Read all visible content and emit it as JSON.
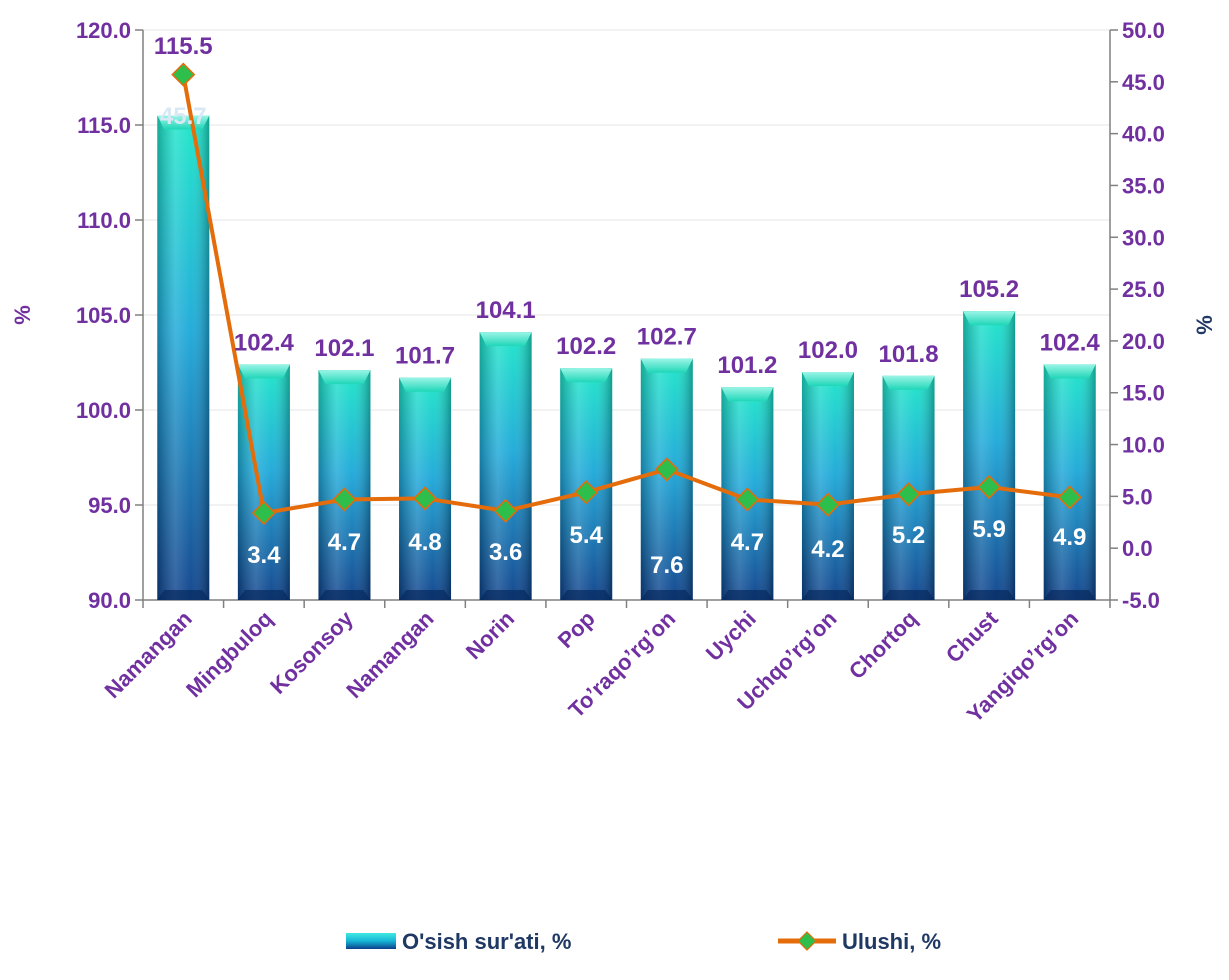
{
  "chart_data": {
    "type": "bar",
    "categories": [
      "Namangan",
      "Mingbuloq",
      "Kosonsoy",
      "Namangan",
      "Norin",
      "Pop",
      "To’raqo’rg’on",
      "Uychi",
      "Uchqo’rg’on",
      "Chortoq",
      "Chust",
      "Yangiqo’rg’on"
    ],
    "series": [
      {
        "name": "O'sish sur'ati, %",
        "type": "bar",
        "axis": "left",
        "values": [
          115.5,
          102.4,
          102.1,
          101.7,
          104.1,
          102.2,
          102.7,
          101.2,
          102.0,
          101.8,
          105.2,
          102.4
        ],
        "labels": [
          "115.5",
          "102.4",
          "102.1",
          "101.7",
          "104.1",
          "102.2",
          "102.7",
          "101.2",
          "102.0",
          "101.8",
          "105.2",
          "102.4"
        ]
      },
      {
        "name": "Ulushi, %",
        "type": "line",
        "axis": "right",
        "values": [
          45.7,
          3.4,
          4.7,
          4.8,
          3.6,
          5.4,
          7.6,
          4.7,
          4.2,
          5.2,
          5.9,
          4.9
        ],
        "labels": [
          "45.7",
          "3.4",
          "4.7",
          "4.8",
          "3.6",
          "5.4",
          "7.6",
          "4.7",
          "4.2",
          "5.2",
          "5.9",
          "4.9"
        ]
      }
    ],
    "ylabel": "%",
    "y2label": "%",
    "ylim": [
      90,
      120
    ],
    "y2lim": [
      -5,
      50
    ],
    "yticks": [
      "90.0",
      "95.0",
      "100.0",
      "105.0",
      "110.0",
      "115.0",
      "120.0"
    ],
    "y2ticks": [
      "-5.0",
      "0.0",
      "5.0",
      "10.0",
      "15.0",
      "20.0",
      "25.0",
      "30.0",
      "35.0",
      "40.0",
      "45.0",
      "50.0"
    ],
    "grid": true,
    "legend": "bottom",
    "colors": {
      "bar_top": "#19E6C8",
      "bar_mid": "#1AA7D8",
      "bar_bottom": "#0B3F8A",
      "line": "#E46C0A",
      "marker": "#2DBE4B",
      "text": "#7030A0",
      "right_title": "#1F3864"
    }
  }
}
